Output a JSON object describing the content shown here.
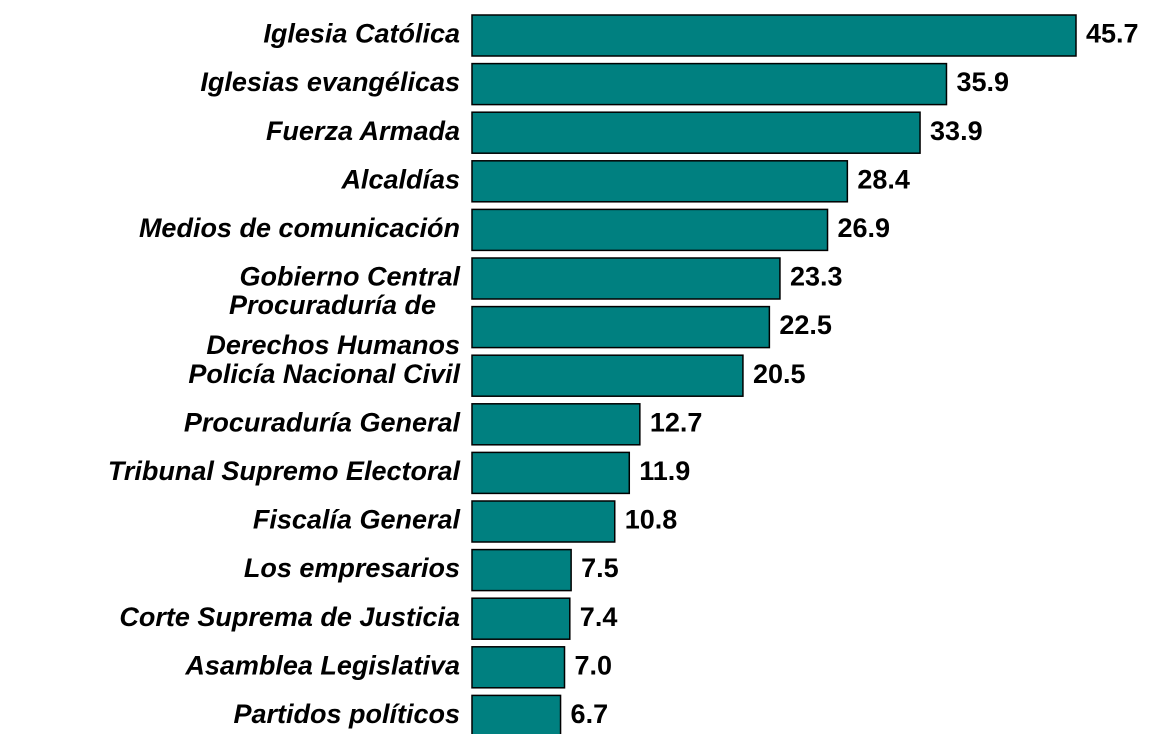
{
  "chart_data": {
    "type": "bar",
    "orientation": "horizontal",
    "color": "#008080",
    "categories": [
      "Iglesia Católica",
      "Iglesias evangélicas",
      "Fuerza Armada",
      "Alcaldías",
      "Medios de comunicación",
      "Gobierno Central",
      "Procuraduría de\nDerechos Humanos",
      "Policía Nacional Civil",
      "Procuraduría General",
      "Tribunal Supremo Electoral",
      "Fiscalía General",
      "Los empresarios",
      "Corte Suprema de Justicia",
      "Asamblea Legislativa",
      "Partidos políticos"
    ],
    "values": [
      45.7,
      35.9,
      33.9,
      28.4,
      26.9,
      23.3,
      22.5,
      20.5,
      12.7,
      11.9,
      10.8,
      7.5,
      7.4,
      7.0,
      6.7
    ],
    "value_labels": [
      "45.7",
      "35.9",
      "33.9",
      "28.4",
      "26.9",
      "23.3",
      "22.5",
      "20.5",
      "12.7",
      "11.9",
      "10.8",
      "7.5",
      "7.4",
      "7.0",
      "6.7"
    ]
  }
}
